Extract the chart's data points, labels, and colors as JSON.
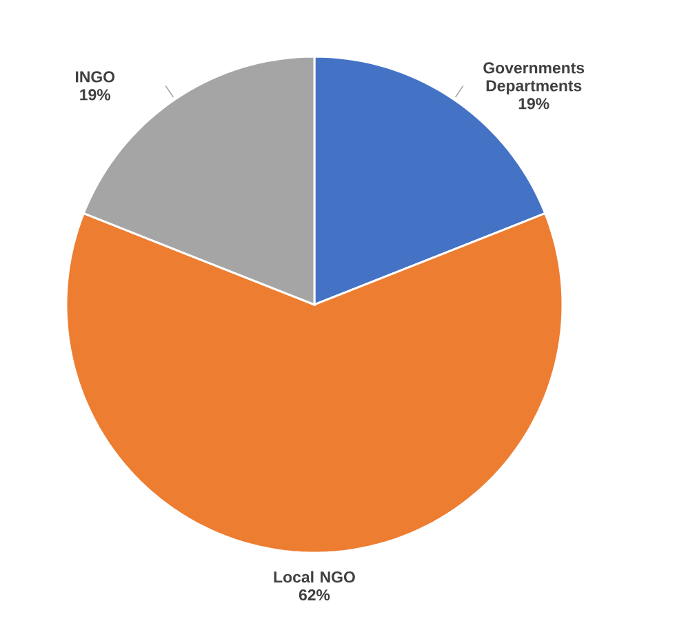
{
  "chart_data": {
    "type": "pie",
    "categories": [
      "Governments Departments",
      "Local NGO",
      "INGO"
    ],
    "values": [
      19,
      62,
      19
    ],
    "colors": [
      "#4472c4",
      "#ed7d31",
      "#a5a5a5"
    ],
    "value_labels": [
      "19%",
      "62%",
      "19%"
    ]
  }
}
